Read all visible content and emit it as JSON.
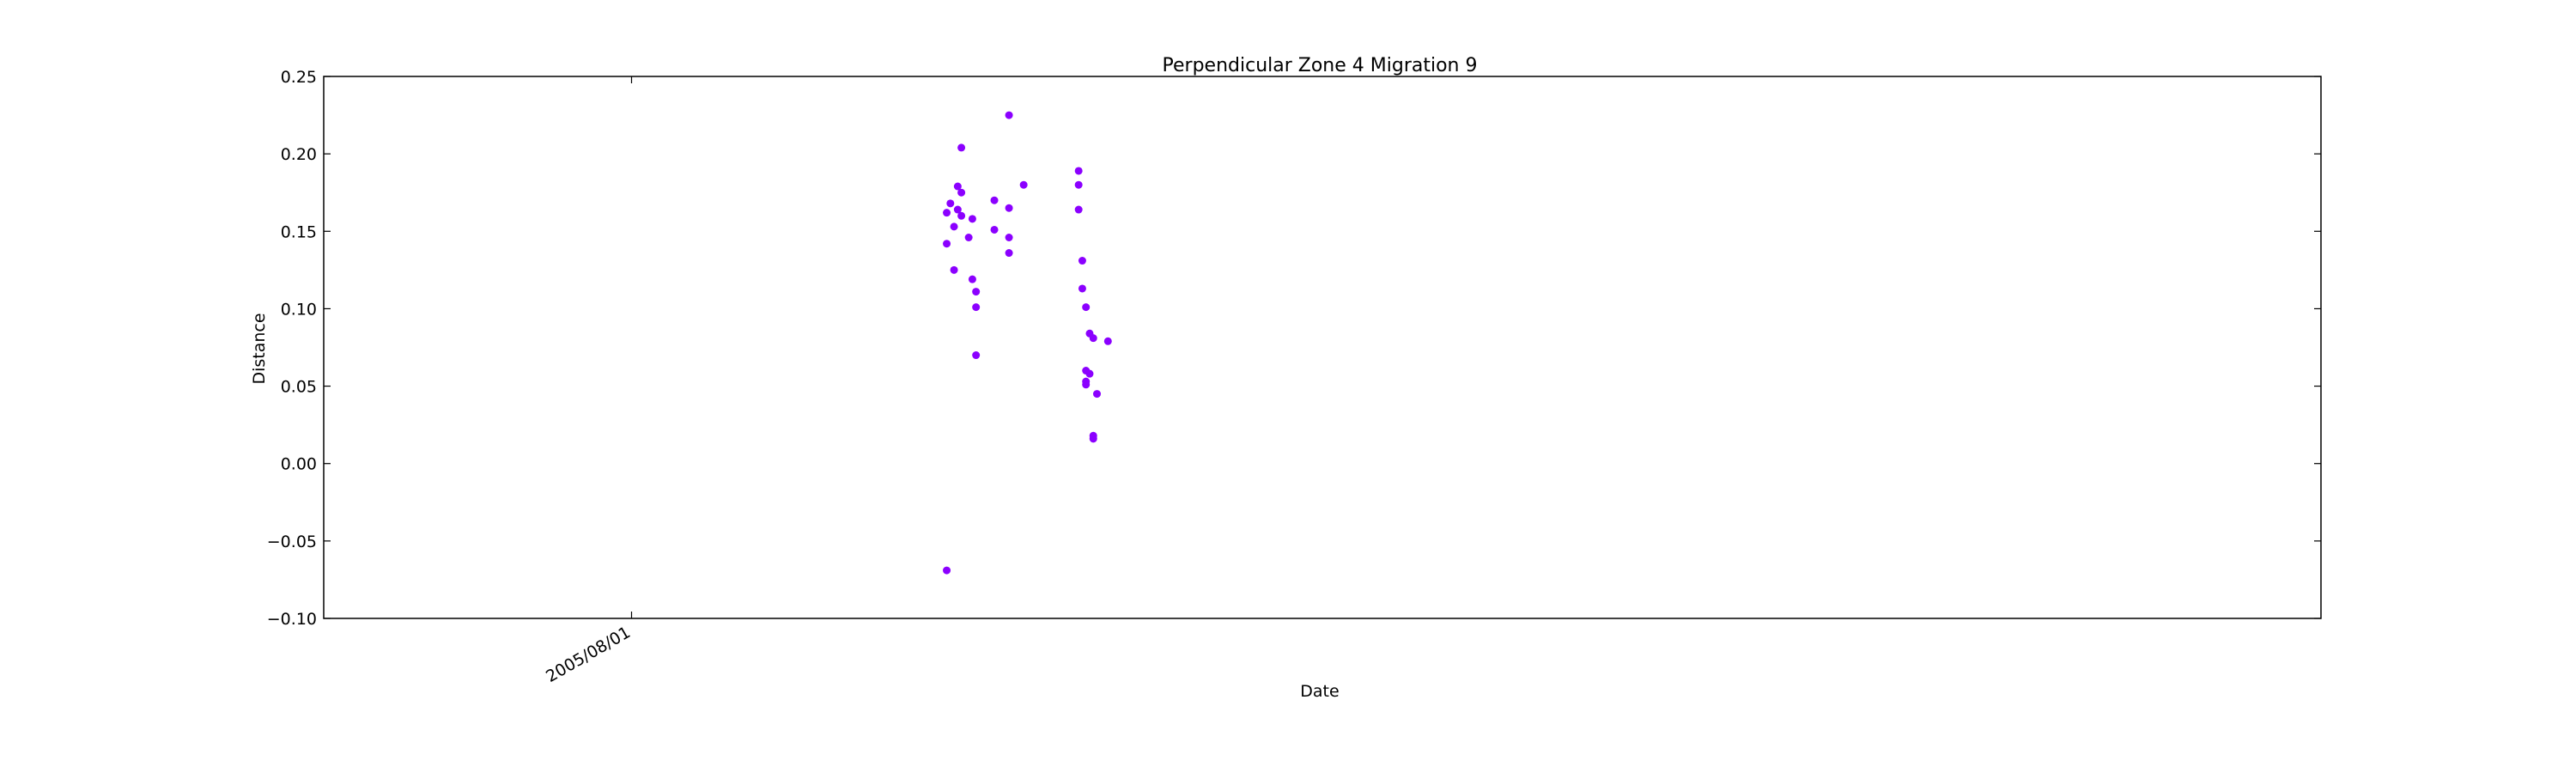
{
  "chart_data": {
    "type": "scatter",
    "title": "Perpendicular Zone 4 Migration 9",
    "xlabel": "Date",
    "ylabel": "Distance",
    "ylim": [
      -0.1,
      0.25
    ],
    "yticks": [
      "0.25",
      "0.20",
      "0.15",
      "0.10",
      "0.05",
      "0.00",
      "−0.05",
      "−0.10"
    ],
    "ytick_values": [
      0.25,
      0.2,
      0.15,
      0.1,
      0.05,
      0.0,
      -0.05,
      -0.1
    ],
    "xlim": [
      "2005-05-09",
      "2006-11-05"
    ],
    "xticks": [
      "2005/08/01"
    ],
    "xtick_values": [
      "2005-08-01"
    ],
    "grid": false,
    "marker_color": "#8b00ff",
    "points": [
      {
        "x": "2005-10-26",
        "y": -0.069
      },
      {
        "x": "2005-10-26",
        "y": 0.162
      },
      {
        "x": "2005-10-26",
        "y": 0.142
      },
      {
        "x": "2005-10-27",
        "y": 0.168
      },
      {
        "x": "2005-10-28",
        "y": 0.153
      },
      {
        "x": "2005-10-28",
        "y": 0.125
      },
      {
        "x": "2005-10-29",
        "y": 0.179
      },
      {
        "x": "2005-10-29",
        "y": 0.164
      },
      {
        "x": "2005-10-30",
        "y": 0.16
      },
      {
        "x": "2005-10-30",
        "y": 0.175
      },
      {
        "x": "2005-10-30",
        "y": 0.204
      },
      {
        "x": "2005-11-01",
        "y": 0.146
      },
      {
        "x": "2005-11-02",
        "y": 0.119
      },
      {
        "x": "2005-11-02",
        "y": 0.158
      },
      {
        "x": "2005-11-03",
        "y": 0.111
      },
      {
        "x": "2005-11-03",
        "y": 0.101
      },
      {
        "x": "2005-11-03",
        "y": 0.07
      },
      {
        "x": "2005-11-08",
        "y": 0.17
      },
      {
        "x": "2005-11-08",
        "y": 0.151
      },
      {
        "x": "2005-11-12",
        "y": 0.225
      },
      {
        "x": "2005-11-12",
        "y": 0.165
      },
      {
        "x": "2005-11-12",
        "y": 0.146
      },
      {
        "x": "2005-11-12",
        "y": 0.136
      },
      {
        "x": "2005-11-16",
        "y": 0.18
      },
      {
        "x": "2005-12-01",
        "y": 0.189
      },
      {
        "x": "2005-12-01",
        "y": 0.18
      },
      {
        "x": "2005-12-01",
        "y": 0.164
      },
      {
        "x": "2005-12-02",
        "y": 0.131
      },
      {
        "x": "2005-12-02",
        "y": 0.113
      },
      {
        "x": "2005-12-03",
        "y": 0.101
      },
      {
        "x": "2005-12-03",
        "y": 0.06
      },
      {
        "x": "2005-12-03",
        "y": 0.053
      },
      {
        "x": "2005-12-03",
        "y": 0.051
      },
      {
        "x": "2005-12-04",
        "y": 0.084
      },
      {
        "x": "2005-12-04",
        "y": 0.058
      },
      {
        "x": "2005-12-05",
        "y": 0.081
      },
      {
        "x": "2005-12-05",
        "y": 0.018
      },
      {
        "x": "2005-12-05",
        "y": 0.016
      },
      {
        "x": "2005-12-06",
        "y": 0.045
      },
      {
        "x": "2005-12-09",
        "y": 0.079
      }
    ]
  }
}
